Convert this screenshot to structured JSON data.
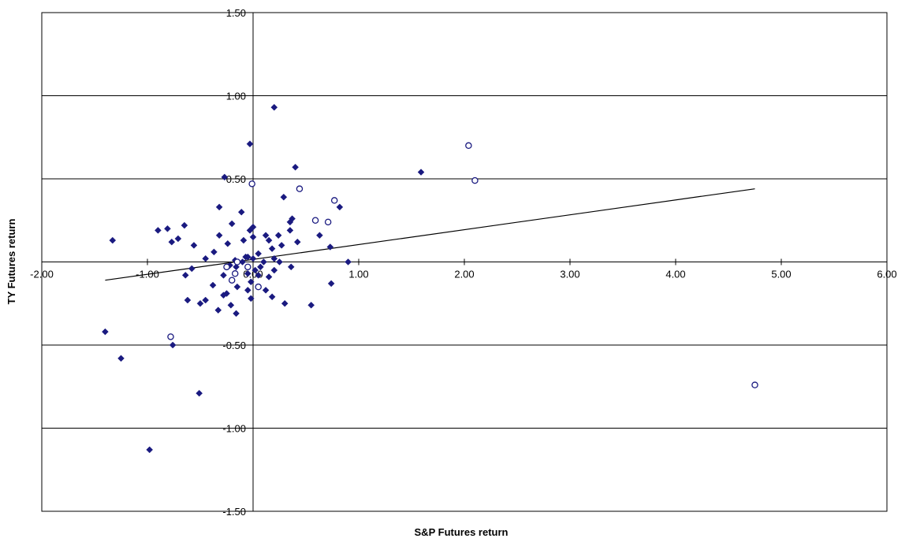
{
  "chart_data": {
    "type": "scatter",
    "title": "",
    "xlabel": "S&P Futures return",
    "ylabel": "TY Futures return",
    "xlim": [
      -2,
      6
    ],
    "ylim": [
      -1.5,
      1.5
    ],
    "x_ticks": [
      "-2.00",
      "-1.00",
      "0.00",
      "1.00",
      "2.00",
      "3.00",
      "4.00",
      "5.00",
      "6.00"
    ],
    "y_ticks": [
      "1.50",
      "1.00",
      "0.50",
      "-0.50",
      "-1.00",
      "-1.50"
    ],
    "grid": {
      "horizontal": true,
      "vertical": false
    },
    "legend": "none",
    "colors": {
      "marker": "#1a1a80",
      "axis": "#000000"
    },
    "series": [
      {
        "marker": "filled-diamond",
        "points": [
          [
            0.2,
            0.93
          ],
          [
            -0.03,
            0.71
          ],
          [
            -0.27,
            0.51
          ],
          [
            0.4,
            0.57
          ],
          [
            1.59,
            0.54
          ],
          [
            -0.32,
            0.33
          ],
          [
            0.29,
            0.39
          ],
          [
            0.82,
            0.33
          ],
          [
            -0.11,
            0.3
          ],
          [
            0.0,
            0.21
          ],
          [
            -0.65,
            0.22
          ],
          [
            -0.81,
            0.2
          ],
          [
            -0.9,
            0.19
          ],
          [
            0.37,
            0.26
          ],
          [
            -0.2,
            0.23
          ],
          [
            0.35,
            0.24
          ],
          [
            0.63,
            0.16
          ],
          [
            -0.03,
            0.19
          ],
          [
            0.35,
            0.19
          ],
          [
            -0.77,
            0.12
          ],
          [
            -0.71,
            0.14
          ],
          [
            -0.32,
            0.16
          ],
          [
            -0.56,
            0.1
          ],
          [
            0.12,
            0.16
          ],
          [
            0.24,
            0.16
          ],
          [
            0.0,
            0.15
          ],
          [
            0.15,
            0.13
          ],
          [
            0.27,
            0.1
          ],
          [
            0.42,
            0.12
          ],
          [
            0.73,
            0.09
          ],
          [
            -1.33,
            0.13
          ],
          [
            -0.24,
            0.11
          ],
          [
            -0.09,
            0.13
          ],
          [
            0.18,
            0.08
          ],
          [
            -0.37,
            0.06
          ],
          [
            -0.45,
            0.02
          ],
          [
            0.05,
            0.05
          ],
          [
            -0.07,
            0.03
          ],
          [
            -0.17,
            0.01
          ],
          [
            -0.16,
            -0.03
          ],
          [
            -0.1,
            0.0
          ],
          [
            -0.22,
            -0.02
          ],
          [
            -0.58,
            -0.04
          ],
          [
            -0.64,
            -0.08
          ],
          [
            0.07,
            -0.03
          ],
          [
            0.2,
            -0.05
          ],
          [
            0.36,
            -0.03
          ],
          [
            -0.05,
            -0.07
          ],
          [
            0.02,
            -0.05
          ],
          [
            0.2,
            0.02
          ],
          [
            0.25,
            0.0
          ],
          [
            0.0,
            0.02
          ],
          [
            -0.05,
            0.03
          ],
          [
            0.1,
            0.0
          ],
          [
            -0.28,
            -0.08
          ],
          [
            -0.38,
            -0.14
          ],
          [
            0.05,
            -0.08
          ],
          [
            0.15,
            -0.09
          ],
          [
            -0.02,
            -0.12
          ],
          [
            0.9,
            0.0
          ],
          [
            -0.15,
            -0.15
          ],
          [
            -0.05,
            -0.17
          ],
          [
            0.12,
            -0.17
          ],
          [
            0.18,
            -0.21
          ],
          [
            -0.62,
            -0.23
          ],
          [
            -0.25,
            -0.19
          ],
          [
            -0.28,
            -0.2
          ],
          [
            -0.02,
            -0.22
          ],
          [
            0.3,
            -0.25
          ],
          [
            0.55,
            -0.26
          ],
          [
            0.74,
            -0.13
          ],
          [
            -0.5,
            -0.25
          ],
          [
            -0.21,
            -0.26
          ],
          [
            -0.45,
            -0.23
          ],
          [
            -0.33,
            -0.29
          ],
          [
            -0.16,
            -0.31
          ],
          [
            -1.4,
            -0.42
          ],
          [
            -0.76,
            -0.5
          ],
          [
            -1.25,
            -0.58
          ],
          [
            -0.51,
            -0.79
          ],
          [
            -0.98,
            -1.13
          ]
        ]
      },
      {
        "marker": "hollow-circle",
        "points": [
          [
            2.04,
            0.7
          ],
          [
            2.1,
            0.49
          ],
          [
            -0.01,
            0.47
          ],
          [
            0.44,
            0.44
          ],
          [
            0.77,
            0.37
          ],
          [
            0.59,
            0.25
          ],
          [
            0.71,
            0.24
          ],
          [
            -0.78,
            -0.45
          ],
          [
            -0.17,
            -0.07
          ],
          [
            -0.2,
            -0.11
          ],
          [
            -0.25,
            -0.03
          ],
          [
            -0.15,
            0.0
          ],
          [
            0.05,
            -0.15
          ],
          [
            -0.05,
            -0.03
          ],
          [
            4.75,
            -0.74
          ]
        ]
      }
    ],
    "trendline": {
      "x": [
        -1.4,
        4.75
      ],
      "y": [
        -0.11,
        0.44
      ]
    }
  }
}
